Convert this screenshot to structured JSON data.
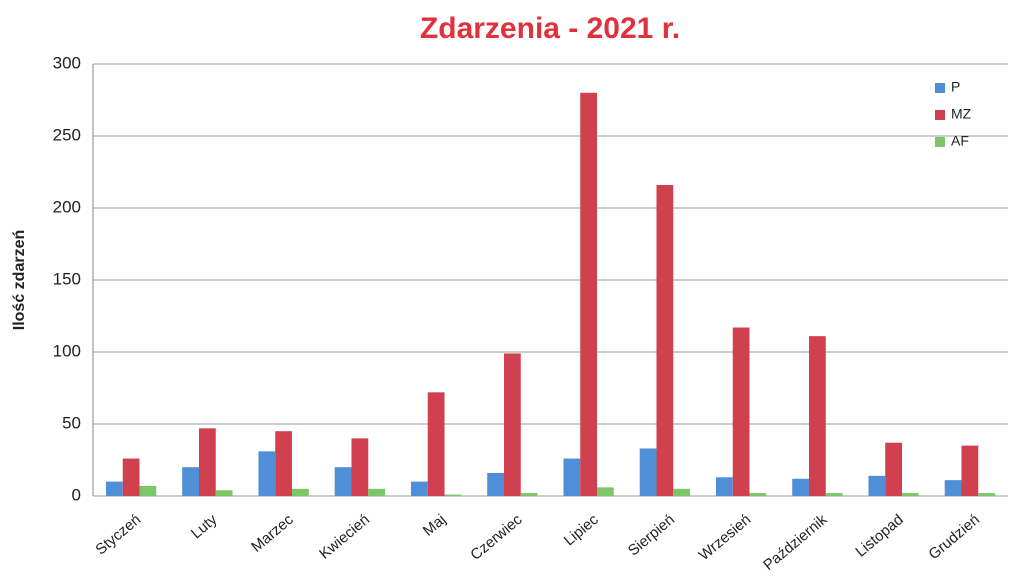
{
  "chart_data": {
    "type": "bar",
    "title": "Zdarzenia - 2021 r.",
    "y_label": "Ilość zdarzeń",
    "categories": [
      "Styczeń",
      "Luty",
      "Marzec",
      "Kwiecień",
      "Maj",
      "Czerwiec",
      "Lipiec",
      "Sierpień",
      "Wrzesień",
      "Październik",
      "Listopad",
      "Grudzień"
    ],
    "series": [
      {
        "name": "P",
        "color": "#4f8fd8",
        "values": [
          10,
          20,
          31,
          20,
          10,
          16,
          26,
          33,
          13,
          12,
          14,
          11
        ]
      },
      {
        "name": "MZ",
        "color": "#d0404e",
        "values": [
          26,
          47,
          45,
          40,
          72,
          99,
          280,
          216,
          117,
          111,
          37,
          35
        ]
      },
      {
        "name": "AF",
        "color": "#7cc66a",
        "values": [
          7,
          4,
          5,
          5,
          1,
          2,
          6,
          5,
          2,
          2,
          2,
          2
        ]
      }
    ],
    "ylim": [
      0,
      300
    ],
    "yticks": [
      0,
      50,
      100,
      150,
      200,
      250,
      300
    ],
    "grid": true,
    "legend": "upper right"
  }
}
